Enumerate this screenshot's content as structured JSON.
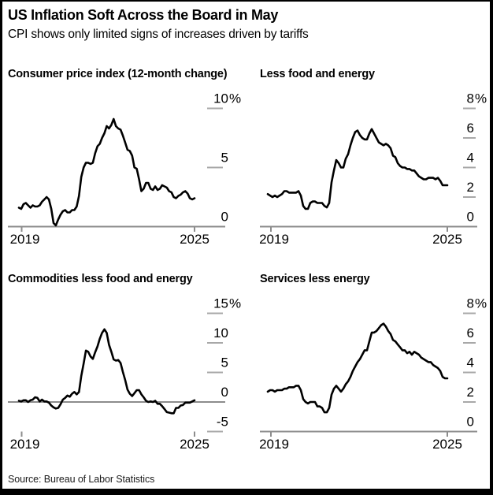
{
  "header": {
    "title": "US Inflation Soft Across the Board in May",
    "subtitle": "CPI shows only limited signs of increases driven by tariffs"
  },
  "footer": {
    "source": "Source: Bureau of Labor Statistics"
  },
  "colors": {
    "line": "#000000",
    "axis": "#8c8c8c",
    "tick_dash": "#a8a8a8",
    "text": "#000000",
    "footer_bar": "#000000",
    "background": "#ffffff"
  },
  "chart_data": [
    {
      "type": "line",
      "title": "Consumer price index (12-month change)",
      "unit": "%",
      "frequency": "monthly",
      "x_start": "Jan 2019",
      "x_end": "May 2025",
      "x_tick_labels": [
        "2019",
        "2025"
      ],
      "ylim": [
        0,
        10
      ],
      "yticks": [
        {
          "value": 10,
          "label": "10",
          "suffix": "%"
        },
        {
          "value": 5,
          "label": "5"
        },
        {
          "value": 0,
          "label": "0"
        }
      ],
      "zero_axis": "baseline",
      "grid": "off",
      "values": [
        1.6,
        1.5,
        1.9,
        2.0,
        1.8,
        1.6,
        1.8,
        1.7,
        1.7,
        1.8,
        2.1,
        2.3,
        2.5,
        2.3,
        1.5,
        0.3,
        0.1,
        0.6,
        1.0,
        1.3,
        1.4,
        1.2,
        1.2,
        1.4,
        1.4,
        1.7,
        2.6,
        4.2,
        5.0,
        5.4,
        5.4,
        5.3,
        5.4,
        6.2,
        6.8,
        7.0,
        7.5,
        7.9,
        8.5,
        8.3,
        8.6,
        9.1,
        8.5,
        8.3,
        8.2,
        7.7,
        7.1,
        6.5,
        6.4,
        6.0,
        5.0,
        4.9,
        4.0,
        3.0,
        3.2,
        3.7,
        3.7,
        3.2,
        3.1,
        3.4,
        3.1,
        3.2,
        3.5,
        3.4,
        3.3,
        3.0,
        2.9,
        2.5,
        2.4,
        2.6,
        2.7,
        2.9,
        3.0,
        2.8,
        2.4,
        2.3,
        2.4
      ]
    },
    {
      "type": "line",
      "title": "Less food and energy",
      "unit": "%",
      "frequency": "monthly",
      "x_start": "Jan 2019",
      "x_end": "May 2025",
      "x_tick_labels": [
        "2019",
        "2025"
      ],
      "ylim": [
        0,
        8
      ],
      "yticks": [
        {
          "value": 8,
          "label": "8",
          "suffix": "%"
        },
        {
          "value": 6,
          "label": "6"
        },
        {
          "value": 4,
          "label": "4"
        },
        {
          "value": 2,
          "label": "2"
        },
        {
          "value": 0,
          "label": "0"
        }
      ],
      "zero_axis": "baseline",
      "grid": "off",
      "values": [
        2.2,
        2.1,
        2.0,
        2.1,
        2.0,
        2.1,
        2.2,
        2.4,
        2.4,
        2.3,
        2.3,
        2.3,
        2.3,
        2.4,
        2.1,
        1.4,
        1.2,
        1.2,
        1.6,
        1.7,
        1.7,
        1.6,
        1.6,
        1.6,
        1.4,
        1.3,
        1.6,
        3.0,
        3.8,
        4.5,
        4.3,
        4.0,
        4.0,
        4.6,
        4.9,
        5.5,
        6.0,
        6.4,
        6.5,
        6.2,
        6.0,
        5.9,
        5.9,
        6.3,
        6.6,
        6.3,
        6.0,
        5.7,
        5.6,
        5.5,
        5.6,
        5.5,
        5.3,
        4.8,
        4.7,
        4.3,
        4.1,
        4.0,
        4.0,
        3.9,
        3.9,
        3.8,
        3.8,
        3.6,
        3.4,
        3.3,
        3.2,
        3.2,
        3.3,
        3.3,
        3.3,
        3.2,
        3.3,
        3.1,
        2.8,
        2.8,
        2.8
      ]
    },
    {
      "type": "line",
      "title": "Commodities less food and energy",
      "unit": "%",
      "frequency": "monthly",
      "x_start": "Jan 2019",
      "x_end": "May 2025",
      "x_tick_labels": [
        "2019",
        "2025"
      ],
      "ylim": [
        -5,
        15
      ],
      "yticks": [
        {
          "value": 15,
          "label": "15",
          "suffix": "%"
        },
        {
          "value": 10,
          "label": "10"
        },
        {
          "value": 5,
          "label": "5"
        },
        {
          "value": 0,
          "label": "0"
        },
        {
          "value": -5,
          "label": "-5"
        }
      ],
      "zero_axis": "midline",
      "grid": "off",
      "values": [
        0.2,
        0.1,
        0.3,
        0.3,
        0.0,
        0.3,
        0.4,
        0.8,
        0.7,
        0.1,
        0.4,
        0.1,
        0.1,
        -0.1,
        -0.6,
        -0.9,
        -1.1,
        -1.0,
        -0.4,
        0.4,
        0.7,
        1.1,
        0.9,
        1.4,
        1.7,
        1.3,
        1.7,
        4.4,
        6.5,
        8.7,
        8.5,
        7.7,
        7.3,
        8.4,
        9.4,
        10.7,
        11.7,
        12.3,
        11.7,
        9.7,
        8.5,
        7.2,
        7.0,
        7.1,
        6.6,
        5.1,
        3.7,
        2.1,
        1.4,
        1.0,
        1.5,
        2.0,
        2.0,
        1.3,
        0.8,
        0.2,
        0.0,
        0.1,
        0.0,
        0.2,
        -0.3,
        -0.3,
        -0.7,
        -1.2,
        -1.7,
        -1.8,
        -1.9,
        -1.9,
        -1.0,
        -1.0,
        -0.6,
        -0.5,
        -0.1,
        -0.1,
        -0.1,
        0.1,
        0.3
      ]
    },
    {
      "type": "line",
      "title": "Services less energy",
      "unit": "%",
      "frequency": "monthly",
      "x_start": "Jan 2019",
      "x_end": "May 2025",
      "x_tick_labels": [
        "2019",
        "2025"
      ],
      "ylim": [
        0,
        8
      ],
      "yticks": [
        {
          "value": 8,
          "label": "8",
          "suffix": "%"
        },
        {
          "value": 6,
          "label": "6"
        },
        {
          "value": 4,
          "label": "4"
        },
        {
          "value": 2,
          "label": "2"
        },
        {
          "value": 0,
          "label": "0"
        }
      ],
      "zero_axis": "baseline",
      "grid": "off",
      "values": [
        2.7,
        2.8,
        2.8,
        2.7,
        2.8,
        2.8,
        2.8,
        2.9,
        2.9,
        3.0,
        3.0,
        3.0,
        3.1,
        3.1,
        2.8,
        2.2,
        2.0,
        1.9,
        2.0,
        2.0,
        2.0,
        1.7,
        1.7,
        1.6,
        1.3,
        1.3,
        1.6,
        2.5,
        2.9,
        3.1,
        2.9,
        2.7,
        2.9,
        3.2,
        3.4,
        3.7,
        4.1,
        4.4,
        4.7,
        4.9,
        5.2,
        5.5,
        5.5,
        6.1,
        6.7,
        6.7,
        6.8,
        7.0,
        7.2,
        7.3,
        7.1,
        6.8,
        6.6,
        6.2,
        6.1,
        5.9,
        5.7,
        5.5,
        5.5,
        5.3,
        5.4,
        5.2,
        5.4,
        5.3,
        5.2,
        5.0,
        4.9,
        4.8,
        4.7,
        4.7,
        4.5,
        4.4,
        4.3,
        4.1,
        3.7,
        3.6,
        3.6
      ]
    }
  ]
}
